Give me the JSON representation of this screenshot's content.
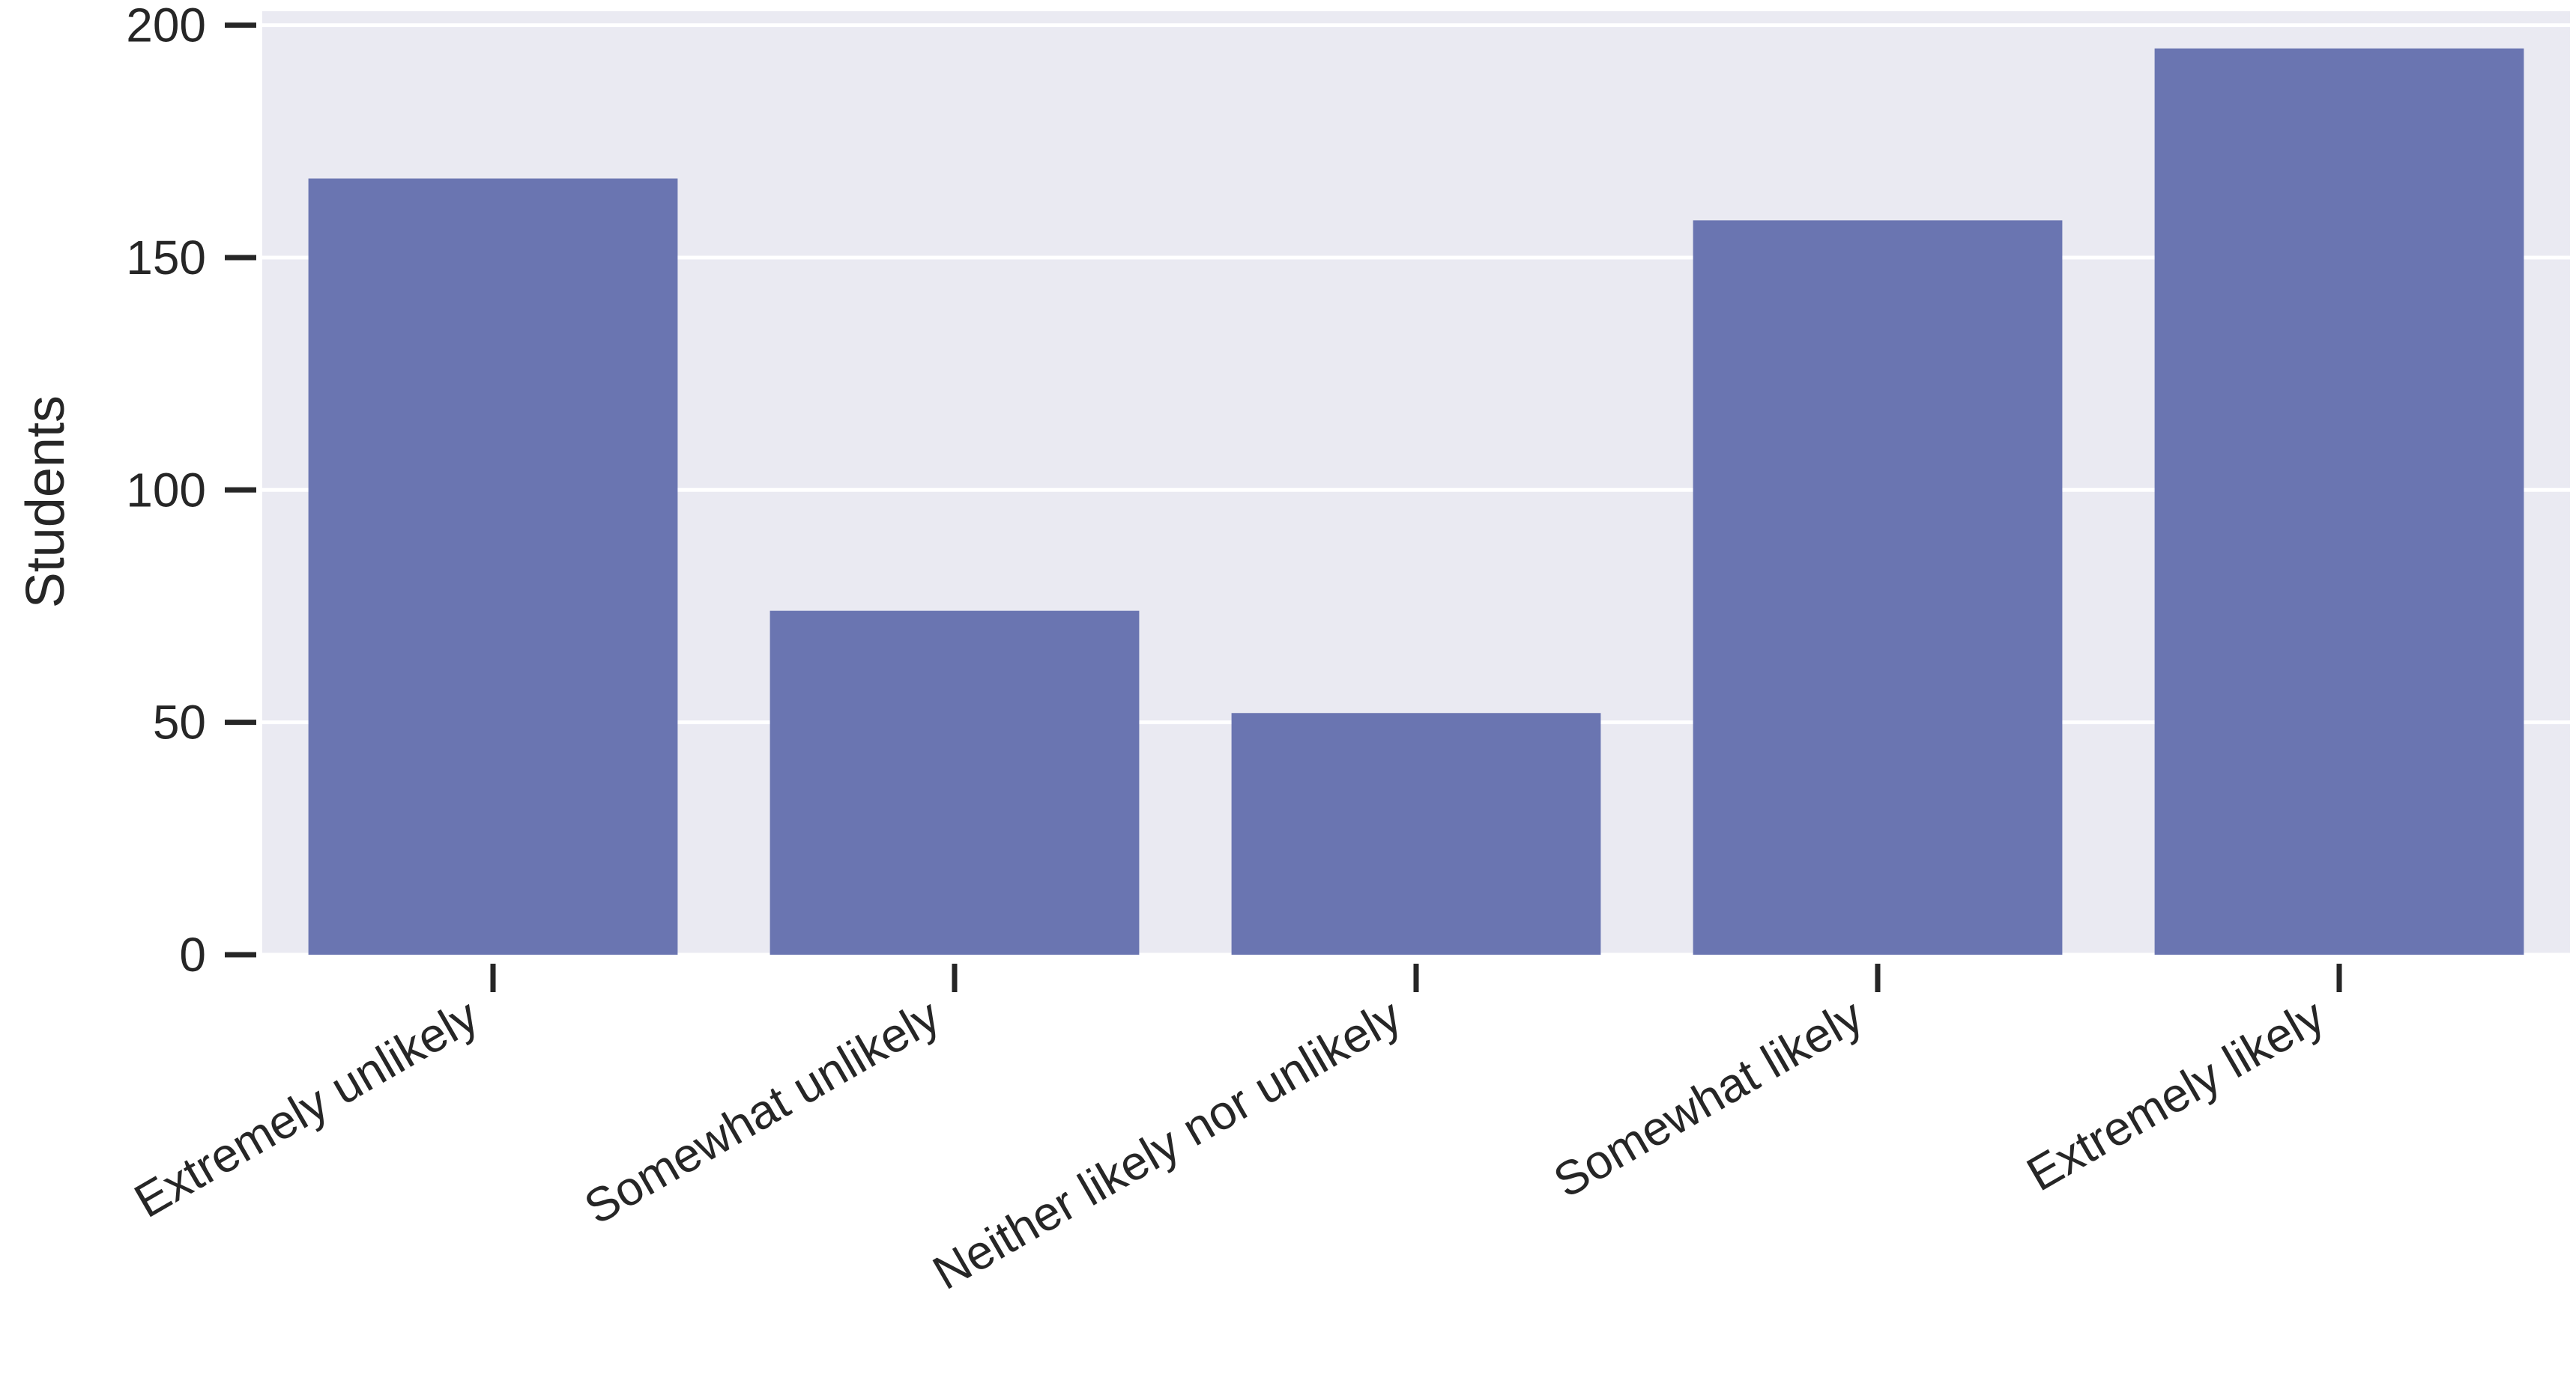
{
  "chart_data": {
    "type": "bar",
    "categories": [
      "Extremely unlikely",
      "Somewhat unlikely",
      "Neither likely nor unlikely",
      "Somewhat likely",
      "Extremely likely"
    ],
    "values": [
      167,
      74,
      52,
      158,
      195
    ],
    "ylabel": "Students",
    "xlabel": "",
    "ylim": [
      0,
      203
    ],
    "yticks": [
      0,
      50,
      100,
      150,
      200
    ],
    "grid": true,
    "colors": {
      "background": "#eaeaf2",
      "bar": "#6a75b1",
      "grid": "#ffffff",
      "text": "#262626"
    }
  }
}
